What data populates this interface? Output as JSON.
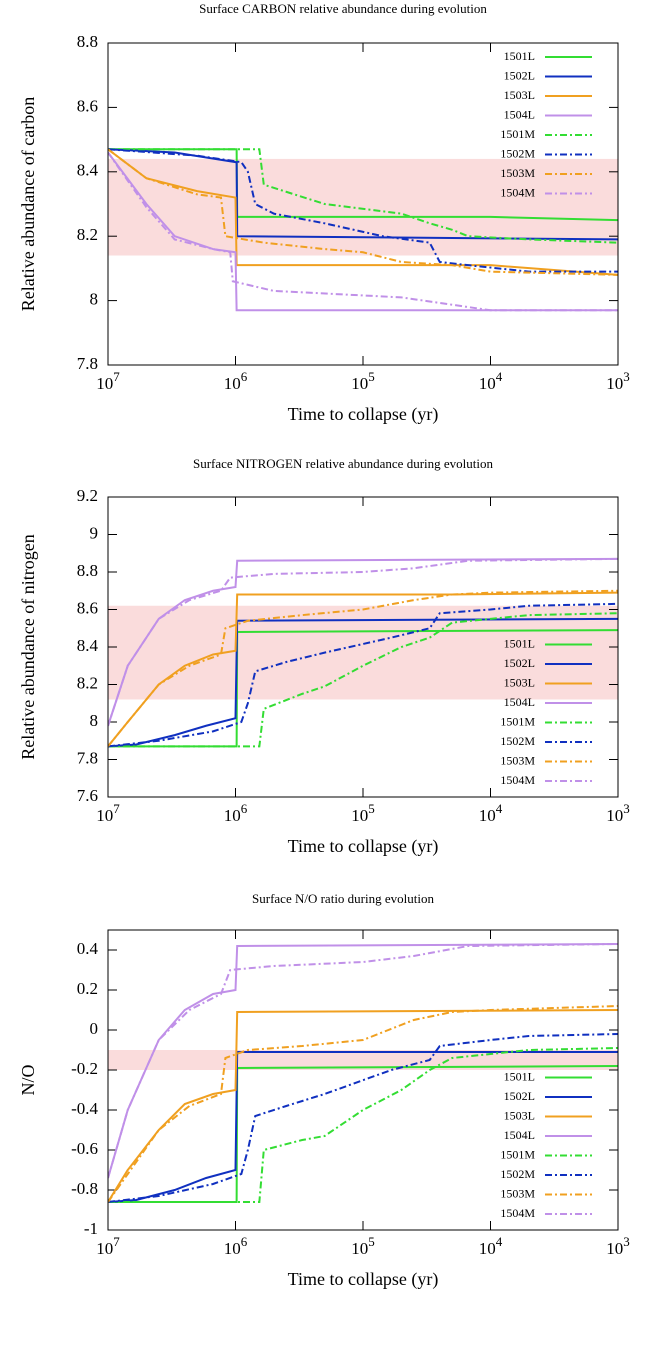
{
  "chart_data": [
    {
      "type": "line",
      "title": "Surface CARBON relative abundance during evolution",
      "xlabel": "Time to collapse (yr)",
      "ylabel": "Relative abundance of carbon",
      "xscale": "log",
      "xlim": [
        10000000,
        1000
      ],
      "ylim": [
        7.8,
        8.8
      ],
      "xticks": [
        {
          "value": 10000000,
          "label": "10^7"
        },
        {
          "value": 1000000,
          "label": "10^6"
        },
        {
          "value": 100000,
          "label": "10^5"
        },
        {
          "value": 10000,
          "label": "10^4"
        },
        {
          "value": 1000,
          "label": "10^3"
        }
      ],
      "yticks": [
        7.8,
        8,
        8.2,
        8.4,
        8.6,
        8.8
      ],
      "band": [
        8.14,
        8.44
      ],
      "band_color": "#fadcdc",
      "legend": "upper right",
      "series": [
        {
          "name": "1501L",
          "color": "#33dd33",
          "style": "solid",
          "x": [
            10000000,
            980000,
            970000,
            10000,
            1000
          ],
          "values": [
            8.47,
            8.47,
            8.26,
            8.26,
            8.25
          ]
        },
        {
          "name": "1502L",
          "color": "#1030c0",
          "style": "solid",
          "x": [
            10000000,
            3000000,
            1000000,
            980000,
            970000,
            1000
          ],
          "values": [
            8.47,
            8.46,
            8.43,
            8.43,
            8.2,
            8.19
          ]
        },
        {
          "name": "1503L",
          "color": "#f0a020",
          "style": "solid",
          "x": [
            10000000,
            5000000,
            2000000,
            1000000,
            980000,
            10000,
            1000
          ],
          "values": [
            8.47,
            8.38,
            8.34,
            8.32,
            8.11,
            8.11,
            8.08
          ]
        },
        {
          "name": "1504L",
          "color": "#c090e8",
          "style": "solid",
          "x": [
            10000000,
            5000000,
            3000000,
            1500000,
            1000000,
            980000,
            1000
          ],
          "values": [
            8.46,
            8.3,
            8.2,
            8.16,
            8.15,
            7.97,
            7.97
          ]
        },
        {
          "name": "1501M",
          "color": "#33dd33",
          "style": "dashdot",
          "x": [
            10000000,
            650000,
            600000,
            200000,
            50000,
            30000,
            20000,
            15000,
            5000,
            1000
          ],
          "values": [
            8.47,
            8.47,
            8.36,
            8.3,
            8.27,
            8.24,
            8.22,
            8.2,
            8.19,
            8.18
          ]
        },
        {
          "name": "1502M",
          "color": "#1030c0",
          "style": "dashdot",
          "x": [
            10000000,
            2000000,
            900000,
            800000,
            700000,
            500000,
            200000,
            70000,
            30000,
            25000,
            15000,
            5000,
            1000
          ],
          "values": [
            8.47,
            8.45,
            8.43,
            8.4,
            8.3,
            8.27,
            8.24,
            8.2,
            8.18,
            8.12,
            8.11,
            8.09,
            8.09
          ]
        },
        {
          "name": "1503M",
          "color": "#f0a020",
          "style": "dashdot",
          "x": [
            10000000,
            5000000,
            2000000,
            1300000,
            1200000,
            600000,
            200000,
            100000,
            50000,
            20000,
            10000,
            1000
          ],
          "values": [
            8.47,
            8.38,
            8.33,
            8.32,
            8.2,
            8.18,
            8.16,
            8.15,
            8.12,
            8.11,
            8.09,
            8.08
          ]
        },
        {
          "name": "1504M",
          "color": "#c090e8",
          "style": "dashdot",
          "x": [
            10000000,
            5000000,
            3000000,
            1500000,
            1100000,
            1050000,
            500000,
            50000,
            15000,
            10000,
            1000
          ],
          "values": [
            8.46,
            8.29,
            8.19,
            8.16,
            8.15,
            8.06,
            8.03,
            8.01,
            7.98,
            7.97,
            7.97
          ]
        }
      ]
    },
    {
      "type": "line",
      "title": "Surface NITROGEN relative abundance during evolution",
      "xlabel": "Time to collapse (yr)",
      "ylabel": "Relative abundance of nitrogen",
      "xscale": "log",
      "xlim": [
        10000000,
        1000
      ],
      "ylim": [
        7.6,
        9.2
      ],
      "xticks": [
        {
          "value": 10000000,
          "label": "10^7"
        },
        {
          "value": 1000000,
          "label": "10^6"
        },
        {
          "value": 100000,
          "label": "10^5"
        },
        {
          "value": 10000,
          "label": "10^4"
        },
        {
          "value": 1000,
          "label": "10^3"
        }
      ],
      "yticks": [
        7.6,
        7.8,
        8,
        8.2,
        8.4,
        8.6,
        8.8,
        9,
        9.2
      ],
      "band": [
        8.12,
        8.62
      ],
      "band_color": "#fadcdc",
      "legend": "lower right",
      "series": [
        {
          "name": "1501L",
          "color": "#33dd33",
          "style": "solid",
          "x": [
            10000000,
            980000,
            970000,
            1000
          ],
          "values": [
            7.87,
            7.87,
            8.48,
            8.49
          ]
        },
        {
          "name": "1502L",
          "color": "#1030c0",
          "style": "solid",
          "x": [
            10000000,
            6000000,
            3000000,
            1700000,
            1000000,
            970000,
            1000
          ],
          "values": [
            7.87,
            7.88,
            7.93,
            7.98,
            8.02,
            8.54,
            8.55
          ]
        },
        {
          "name": "1503L",
          "color": "#f0a020",
          "style": "solid",
          "x": [
            10000000,
            7000000,
            4000000,
            2500000,
            1500000,
            1000000,
            970000,
            20000,
            1000
          ],
          "values": [
            7.87,
            8.0,
            8.2,
            8.3,
            8.36,
            8.38,
            8.68,
            8.68,
            8.69
          ]
        },
        {
          "name": "1504L",
          "color": "#c090e8",
          "style": "solid",
          "x": [
            10000000,
            7000000,
            4000000,
            2500000,
            1500000,
            1000000,
            970000,
            1000
          ],
          "values": [
            7.98,
            8.3,
            8.55,
            8.65,
            8.7,
            8.72,
            8.86,
            8.87
          ]
        },
        {
          "name": "1501M",
          "color": "#33dd33",
          "style": "dashdot",
          "x": [
            10000000,
            650000,
            600000,
            300000,
            200000,
            100000,
            50000,
            30000,
            20000,
            10000,
            5000,
            1000
          ],
          "values": [
            7.87,
            7.87,
            8.07,
            8.15,
            8.19,
            8.3,
            8.4,
            8.45,
            8.53,
            8.55,
            8.57,
            8.58
          ]
        },
        {
          "name": "1502M",
          "color": "#1030c0",
          "style": "dashdot",
          "x": [
            10000000,
            4000000,
            1500000,
            900000,
            800000,
            700000,
            400000,
            200000,
            60000,
            30000,
            25000,
            10000,
            5000,
            1000
          ],
          "values": [
            7.87,
            7.9,
            7.95,
            8.0,
            8.1,
            8.27,
            8.32,
            8.37,
            8.45,
            8.5,
            8.58,
            8.6,
            8.62,
            8.63
          ]
        },
        {
          "name": "1503M",
          "color": "#f0a020",
          "style": "dashdot",
          "x": [
            10000000,
            7000000,
            4000000,
            2300000,
            1300000,
            1200000,
            800000,
            300000,
            100000,
            40000,
            20000,
            10000,
            1000
          ],
          "values": [
            7.87,
            8.0,
            8.2,
            8.3,
            8.36,
            8.5,
            8.54,
            8.57,
            8.6,
            8.65,
            8.68,
            8.69,
            8.7
          ]
        },
        {
          "name": "1504M",
          "color": "#c090e8",
          "style": "dashdot",
          "x": [
            10000000,
            7000000,
            4000000,
            2300000,
            1300000,
            1100000,
            500000,
            100000,
            40000,
            15000,
            1000
          ],
          "values": [
            7.98,
            8.3,
            8.55,
            8.65,
            8.7,
            8.77,
            8.79,
            8.8,
            8.82,
            8.86,
            8.87
          ]
        }
      ]
    },
    {
      "type": "line",
      "title": "Surface N/O ratio during evolution",
      "xlabel": "Time to collapse (yr)",
      "ylabel": "N/O",
      "xscale": "log",
      "xlim": [
        10000000,
        1000
      ],
      "ylim": [
        -1,
        0.5
      ],
      "xticks": [
        {
          "value": 10000000,
          "label": "10^7"
        },
        {
          "value": 1000000,
          "label": "10^6"
        },
        {
          "value": 100000,
          "label": "10^5"
        },
        {
          "value": 10000,
          "label": "10^4"
        },
        {
          "value": 1000,
          "label": "10^3"
        }
      ],
      "yticks": [
        -1,
        -0.8,
        -0.6,
        -0.4,
        -0.2,
        0,
        0.2,
        0.4
      ],
      "band": [
        -0.2,
        -0.1
      ],
      "band_color": "#fadcdc",
      "legend": "lower right",
      "series": [
        {
          "name": "1501L",
          "color": "#33dd33",
          "style": "solid",
          "x": [
            10000000,
            980000,
            970000,
            1000
          ],
          "values": [
            -0.86,
            -0.86,
            -0.19,
            -0.18
          ]
        },
        {
          "name": "1502L",
          "color": "#1030c0",
          "style": "solid",
          "x": [
            10000000,
            6000000,
            3000000,
            1700000,
            1000000,
            970000,
            1000
          ],
          "values": [
            -0.86,
            -0.85,
            -0.8,
            -0.74,
            -0.7,
            -0.11,
            -0.11
          ]
        },
        {
          "name": "1503L",
          "color": "#f0a020",
          "style": "solid",
          "x": [
            10000000,
            7000000,
            4000000,
            2500000,
            1500000,
            1000000,
            970000,
            1000
          ],
          "values": [
            -0.86,
            -0.7,
            -0.5,
            -0.37,
            -0.32,
            -0.3,
            0.09,
            0.1
          ]
        },
        {
          "name": "1504L",
          "color": "#c090e8",
          "style": "solid",
          "x": [
            10000000,
            7000000,
            4000000,
            2500000,
            1500000,
            1000000,
            970000,
            1000
          ],
          "values": [
            -0.74,
            -0.4,
            -0.05,
            0.1,
            0.18,
            0.2,
            0.42,
            0.43
          ]
        },
        {
          "name": "1501M",
          "color": "#33dd33",
          "style": "dashdot",
          "x": [
            10000000,
            650000,
            600000,
            300000,
            200000,
            100000,
            50000,
            30000,
            20000,
            10000,
            5000,
            1000
          ],
          "values": [
            -0.86,
            -0.86,
            -0.6,
            -0.55,
            -0.53,
            -0.4,
            -0.3,
            -0.2,
            -0.14,
            -0.12,
            -0.1,
            -0.09
          ]
        },
        {
          "name": "1502M",
          "color": "#1030c0",
          "style": "dashdot",
          "x": [
            10000000,
            4000000,
            1500000,
            900000,
            800000,
            700000,
            400000,
            200000,
            60000,
            30000,
            25000,
            10000,
            5000,
            1000
          ],
          "values": [
            -0.86,
            -0.83,
            -0.77,
            -0.72,
            -0.6,
            -0.43,
            -0.38,
            -0.32,
            -0.2,
            -0.15,
            -0.08,
            -0.05,
            -0.03,
            -0.02
          ]
        },
        {
          "name": "1503M",
          "color": "#f0a020",
          "style": "dashdot",
          "x": [
            10000000,
            7000000,
            4000000,
            2300000,
            1300000,
            1200000,
            800000,
            300000,
            100000,
            40000,
            20000,
            10000,
            1000
          ],
          "values": [
            -0.86,
            -0.72,
            -0.5,
            -0.38,
            -0.32,
            -0.14,
            -0.1,
            -0.08,
            -0.05,
            0.05,
            0.09,
            0.1,
            0.12
          ]
        },
        {
          "name": "1504M",
          "color": "#c090e8",
          "style": "dashdot",
          "x": [
            10000000,
            7000000,
            4000000,
            2300000,
            1300000,
            1100000,
            500000,
            100000,
            40000,
            15000,
            1000
          ],
          "values": [
            -0.74,
            -0.4,
            -0.05,
            0.1,
            0.18,
            0.3,
            0.32,
            0.34,
            0.37,
            0.42,
            0.43
          ]
        }
      ]
    }
  ]
}
